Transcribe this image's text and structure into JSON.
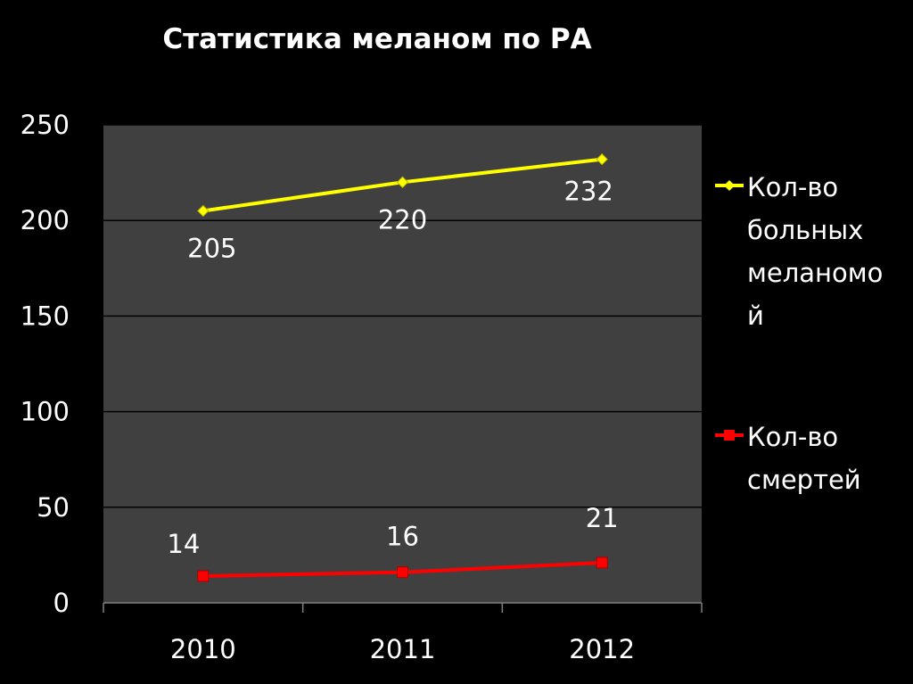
{
  "chart_data": {
    "type": "line",
    "title": "Статистика меланом по РА",
    "xlabel": "",
    "ylabel": "",
    "categories": [
      "2010",
      "2011",
      "2012"
    ],
    "ylim": [
      0,
      250
    ],
    "yticks": [
      "0",
      "50",
      "100",
      "150",
      "200",
      "250"
    ],
    "grid": true,
    "legend_position": "right",
    "plot_background": "#404040",
    "series": [
      {
        "name": "Кол-во больных меланомой",
        "legend_lines": [
          "Кол-во",
          "больных",
          "меланомо",
          "й"
        ],
        "values": [
          205,
          220,
          232
        ],
        "labels": [
          "205",
          "220",
          "232"
        ],
        "color": "#ffff00",
        "marker": "diamond"
      },
      {
        "name": "Кол-во смертей",
        "legend_lines": [
          "Кол-во",
          "смертей"
        ],
        "values": [
          14,
          16,
          21
        ],
        "labels": [
          "14",
          "16",
          "21"
        ],
        "color": "#ff0000",
        "marker": "square"
      }
    ]
  }
}
